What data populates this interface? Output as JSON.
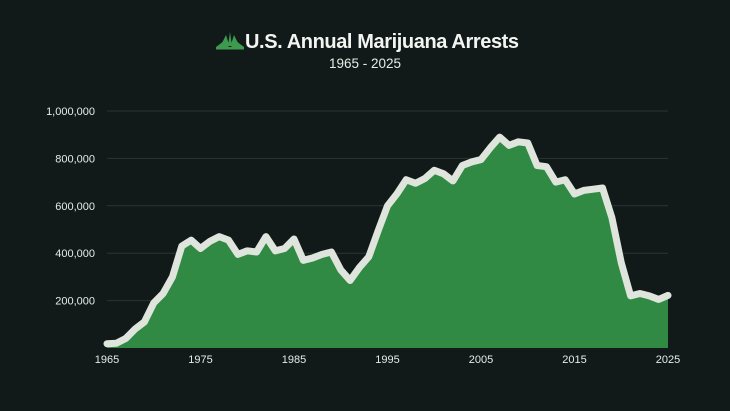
{
  "colors": {
    "background": "#121a19",
    "area_fill": "#318a44",
    "line": "#dfe5dd",
    "grid": "#2a3432",
    "text": "#e6ebe6",
    "title": "#f2f5f1",
    "logo": "#3d9a4e"
  },
  "header": {
    "logo_icon": "cannabis-leaf-icon",
    "title": "U.S. Annual Marijuana Arrests",
    "subtitle": "1965 - 2025"
  },
  "chart_data": {
    "type": "area",
    "title": "U.S. Annual Marijuana Arrests",
    "subtitle": "1965 - 2025",
    "xlabel": "",
    "ylabel": "",
    "xlim": [
      1965,
      2025
    ],
    "ylim": [
      0,
      1000000
    ],
    "x_ticks": [
      1965,
      1975,
      1985,
      1995,
      2005,
      2015,
      2025
    ],
    "y_ticks": [
      200000,
      400000,
      600000,
      800000,
      1000000
    ],
    "y_tick_labels": [
      "200,000",
      "400,000",
      "600,000",
      "800,000",
      "1,000,000"
    ],
    "grid": "horizontal",
    "legend": "none",
    "series": [
      {
        "x": [
          1965,
          1966,
          1967,
          1968,
          1969,
          1970,
          1971,
          1972,
          1973,
          1974,
          1975,
          1976,
          1977,
          1978,
          1979,
          1980,
          1981,
          1982,
          1983,
          1984,
          1985,
          1986,
          1987,
          1988,
          1989,
          1990,
          1991,
          1992,
          1993,
          1994,
          1995,
          1996,
          1997,
          1998,
          1999,
          2000,
          2001,
          2002,
          2003,
          2004,
          2005,
          2006,
          2007,
          2008,
          2009,
          2010,
          2011,
          2012,
          2013,
          2014,
          2015,
          2016,
          2017,
          2018,
          2019,
          2020,
          2021,
          2022,
          2023,
          2024,
          2025
        ],
        "values": [
          18000,
          20000,
          40000,
          80000,
          110000,
          190000,
          230000,
          300000,
          430000,
          455000,
          420000,
          450000,
          470000,
          455000,
          395000,
          410000,
          405000,
          470000,
          410000,
          420000,
          460000,
          370000,
          380000,
          395000,
          405000,
          330000,
          285000,
          340000,
          385000,
          495000,
          600000,
          650000,
          710000,
          695000,
          715000,
          750000,
          735000,
          705000,
          770000,
          785000,
          795000,
          845000,
          890000,
          855000,
          870000,
          865000,
          770000,
          765000,
          700000,
          710000,
          650000,
          665000,
          670000,
          675000,
          550000,
          360000,
          220000,
          230000,
          220000,
          205000,
          222000
        ]
      }
    ]
  }
}
